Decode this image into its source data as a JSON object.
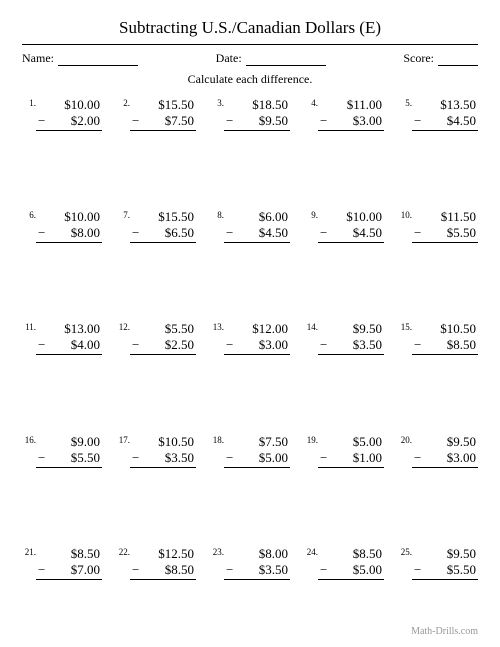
{
  "title": "Subtracting U.S./Canadian Dollars (E)",
  "labels": {
    "name": "Name:",
    "date": "Date:",
    "score": "Score:"
  },
  "instruction": "Calculate each difference.",
  "footer": "Math-Drills.com",
  "minus": "−",
  "problems": [
    {
      "n": "1.",
      "a": "$10.00",
      "b": "$2.00"
    },
    {
      "n": "2.",
      "a": "$15.50",
      "b": "$7.50"
    },
    {
      "n": "3.",
      "a": "$18.50",
      "b": "$9.50"
    },
    {
      "n": "4.",
      "a": "$11.00",
      "b": "$3.00"
    },
    {
      "n": "5.",
      "a": "$13.50",
      "b": "$4.50"
    },
    {
      "n": "6.",
      "a": "$10.00",
      "b": "$8.00"
    },
    {
      "n": "7.",
      "a": "$15.50",
      "b": "$6.50"
    },
    {
      "n": "8.",
      "a": "$6.00",
      "b": "$4.50"
    },
    {
      "n": "9.",
      "a": "$10.00",
      "b": "$4.50"
    },
    {
      "n": "10.",
      "a": "$11.50",
      "b": "$5.50"
    },
    {
      "n": "11.",
      "a": "$13.00",
      "b": "$4.00"
    },
    {
      "n": "12.",
      "a": "$5.50",
      "b": "$2.50"
    },
    {
      "n": "13.",
      "a": "$12.00",
      "b": "$3.00"
    },
    {
      "n": "14.",
      "a": "$9.50",
      "b": "$3.50"
    },
    {
      "n": "15.",
      "a": "$10.50",
      "b": "$8.50"
    },
    {
      "n": "16.",
      "a": "$9.00",
      "b": "$5.50"
    },
    {
      "n": "17.",
      "a": "$10.50",
      "b": "$3.50"
    },
    {
      "n": "18.",
      "a": "$7.50",
      "b": "$5.00"
    },
    {
      "n": "19.",
      "a": "$5.00",
      "b": "$1.00"
    },
    {
      "n": "20.",
      "a": "$9.50",
      "b": "$3.00"
    },
    {
      "n": "21.",
      "a": "$8.50",
      "b": "$7.00"
    },
    {
      "n": "22.",
      "a": "$12.50",
      "b": "$8.50"
    },
    {
      "n": "23.",
      "a": "$8.00",
      "b": "$3.50"
    },
    {
      "n": "24.",
      "a": "$8.50",
      "b": "$5.00"
    },
    {
      "n": "25.",
      "a": "$9.50",
      "b": "$5.50"
    }
  ]
}
